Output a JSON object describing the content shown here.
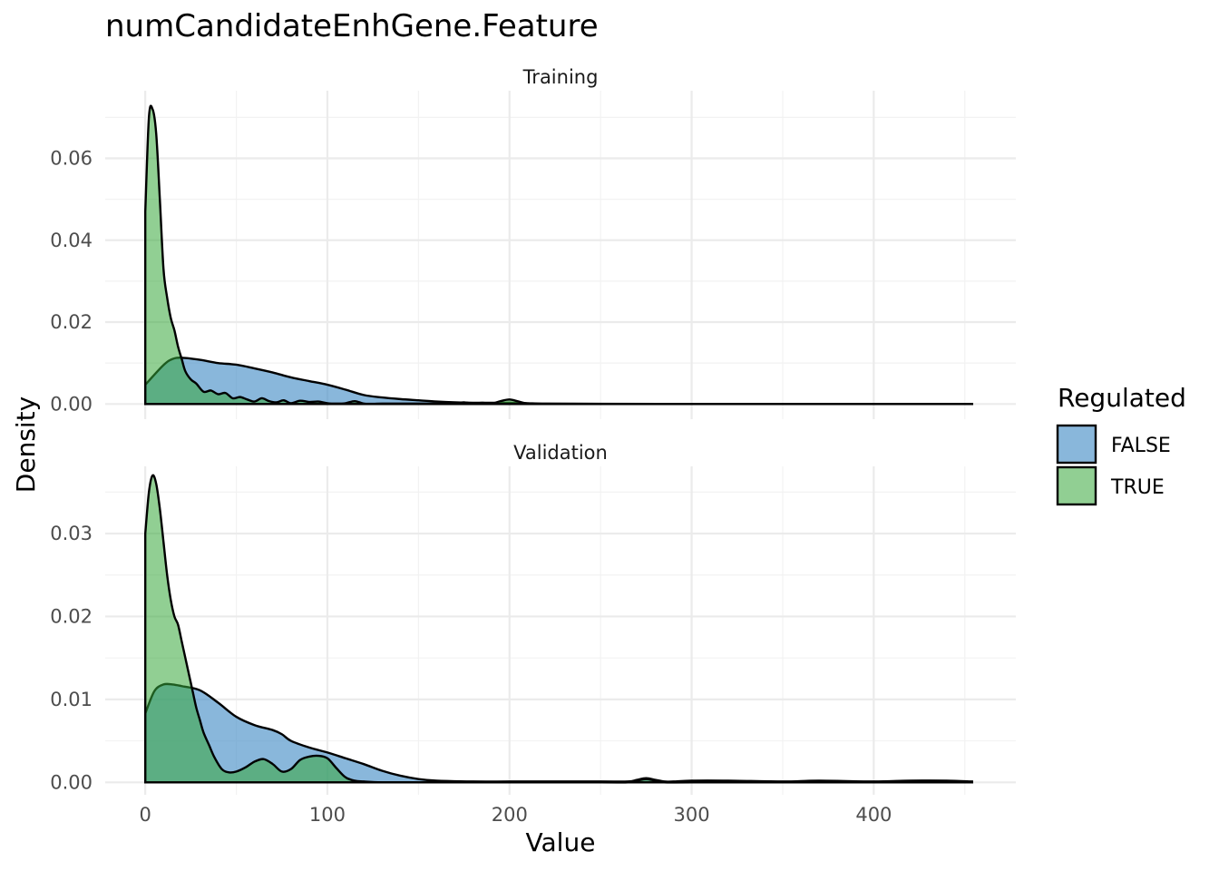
{
  "chart_data": {
    "type": "area",
    "title": "numCandidateEnhGene.Feature",
    "xlabel": "Value",
    "ylabel": "Density",
    "xlim": [
      -22,
      478
    ],
    "x_ticks": [
      0,
      100,
      200,
      300,
      400
    ],
    "x_tick_labels": [
      "0",
      "100",
      "200",
      "300",
      "400"
    ],
    "legend": {
      "title": "Regulated",
      "position": "right",
      "entries": [
        {
          "label": "FALSE",
          "color": "#4a90c8"
        },
        {
          "label": "TRUE",
          "color": "#37a83a"
        }
      ]
    },
    "panels": [
      {
        "name": "Training",
        "ylim": [
          -0.0037,
          0.0765
        ],
        "y_ticks": [
          0,
          0.02,
          0.04,
          0.06
        ],
        "y_tick_labels": [
          "0.00",
          "0.02",
          "0.04",
          "0.06"
        ],
        "series": [
          {
            "name": "FALSE",
            "x": [
              0,
              10,
              15,
              20,
              30,
              40,
              50,
              60,
              70,
              80,
              90,
              100,
              110,
              120,
              130,
              140,
              150,
              160,
              170,
              180,
              190,
              200,
              210,
              220,
              250,
              300,
              350,
              400,
              454
            ],
            "y": [
              0.0047,
              0.0095,
              0.011,
              0.0113,
              0.0108,
              0.01,
              0.0096,
              0.0087,
              0.0077,
              0.0065,
              0.0056,
              0.0047,
              0.0035,
              0.0022,
              0.0016,
              0.0012,
              0.0009,
              0.0006,
              0.0004,
              0.0003,
              0.0003,
              0.0003,
              0.0002,
              0.0001,
              5e-05,
              3e-05,
              2e-05,
              2e-05,
              1e-05
            ]
          },
          {
            "name": "TRUE",
            "x": [
              0,
              2,
              4,
              6,
              8,
              10,
              12,
              14,
              16,
              18,
              20,
              22,
              25,
              28,
              32,
              36,
              40,
              44,
              48,
              52,
              56,
              60,
              64,
              68,
              72,
              76,
              80,
              85,
              90,
              95,
              100,
              105,
              110,
              115,
              120,
              125,
              130,
              140,
              150,
              160,
              170,
              175,
              180,
              185,
              190,
              195,
              200,
              205,
              210,
              220,
              250,
              300,
              350,
              400,
              454
            ],
            "y": [
              0.047,
              0.07,
              0.072,
              0.066,
              0.05,
              0.033,
              0.026,
              0.021,
              0.018,
              0.014,
              0.011,
              0.008,
              0.006,
              0.005,
              0.003,
              0.0033,
              0.0024,
              0.0027,
              0.0014,
              0.0017,
              0.0011,
              0.0006,
              0.0014,
              0.0007,
              0.0004,
              0.0009,
              0.0002,
              0.0008,
              0.0005,
              0.0006,
              0.0002,
              0.0001,
              0.0002,
              0.0007,
              0.0001,
              5e-05,
              0.0001,
              0.0001,
              0.0001,
              0.0001,
              0.0002,
              0.0004,
              0.0001,
              0.0003,
              0.0001,
              0.0007,
              0.0011,
              0.0006,
              0.0001,
              2e-05,
              1e-05,
              0.0,
              0.0,
              0.0,
              0.0
            ]
          }
        ]
      },
      {
        "name": "Validation",
        "ylim": [
          -0.0015,
          0.0381
        ],
        "y_ticks": [
          0,
          0.01,
          0.02,
          0.03
        ],
        "y_tick_labels": [
          "0.00",
          "0.01",
          "0.02",
          "0.03"
        ],
        "series": [
          {
            "name": "FALSE",
            "x": [
              0,
              5,
              10,
              15,
              20,
              30,
              40,
              50,
              60,
              70,
              75,
              80,
              90,
              100,
              110,
              120,
              130,
              140,
              150,
              160,
              180,
              200,
              220,
              250,
              265,
              270,
              275,
              280,
              285,
              290,
              300,
              320,
              350,
              370,
              400,
              420,
              440,
              454
            ],
            "y": [
              0.0083,
              0.011,
              0.0118,
              0.0118,
              0.0116,
              0.0111,
              0.0096,
              0.0079,
              0.0069,
              0.0063,
              0.0058,
              0.005,
              0.0042,
              0.0036,
              0.0029,
              0.0022,
              0.0014,
              0.0008,
              0.0004,
              0.0002,
              0.0001,
              0.0001,
              0.0001,
              0.0001,
              0.0001,
              0.0003,
              0.0005,
              0.0003,
              0.0001,
              0.0001,
              0.0002,
              0.0002,
              0.0001,
              0.0002,
              0.0001,
              0.0002,
              0.0002,
              0.0001
            ]
          },
          {
            "name": "TRUE",
            "x": [
              0,
              2,
              4,
              6,
              8,
              10,
              12,
              14,
              16,
              18,
              20,
              22,
              24,
              26,
              28,
              30,
              32,
              35,
              38,
              42,
              46,
              50,
              55,
              60,
              65,
              70,
              75,
              80,
              85,
              90,
              95,
              100,
              105,
              110,
              115,
              120,
              130,
              150,
              200,
              250,
              265,
              270,
              275,
              280,
              285,
              300,
              350,
              400,
              454
            ],
            "y": [
              0.03,
              0.035,
              0.037,
              0.036,
              0.033,
              0.029,
              0.025,
              0.022,
              0.02,
              0.019,
              0.017,
              0.015,
              0.013,
              0.011,
              0.009,
              0.0075,
              0.006,
              0.0045,
              0.003,
              0.0016,
              0.0012,
              0.0013,
              0.0018,
              0.0025,
              0.0028,
              0.0022,
              0.0013,
              0.0016,
              0.0027,
              0.0031,
              0.0032,
              0.0029,
              0.0017,
              0.0006,
              0.0002,
              0.0001,
              0.0,
              0.0,
              0.0,
              0.0,
              0.0,
              0.0002,
              0.0004,
              0.0002,
              0.0,
              0.0,
              0.0,
              0.0,
              0.0
            ]
          }
        ]
      }
    ]
  }
}
